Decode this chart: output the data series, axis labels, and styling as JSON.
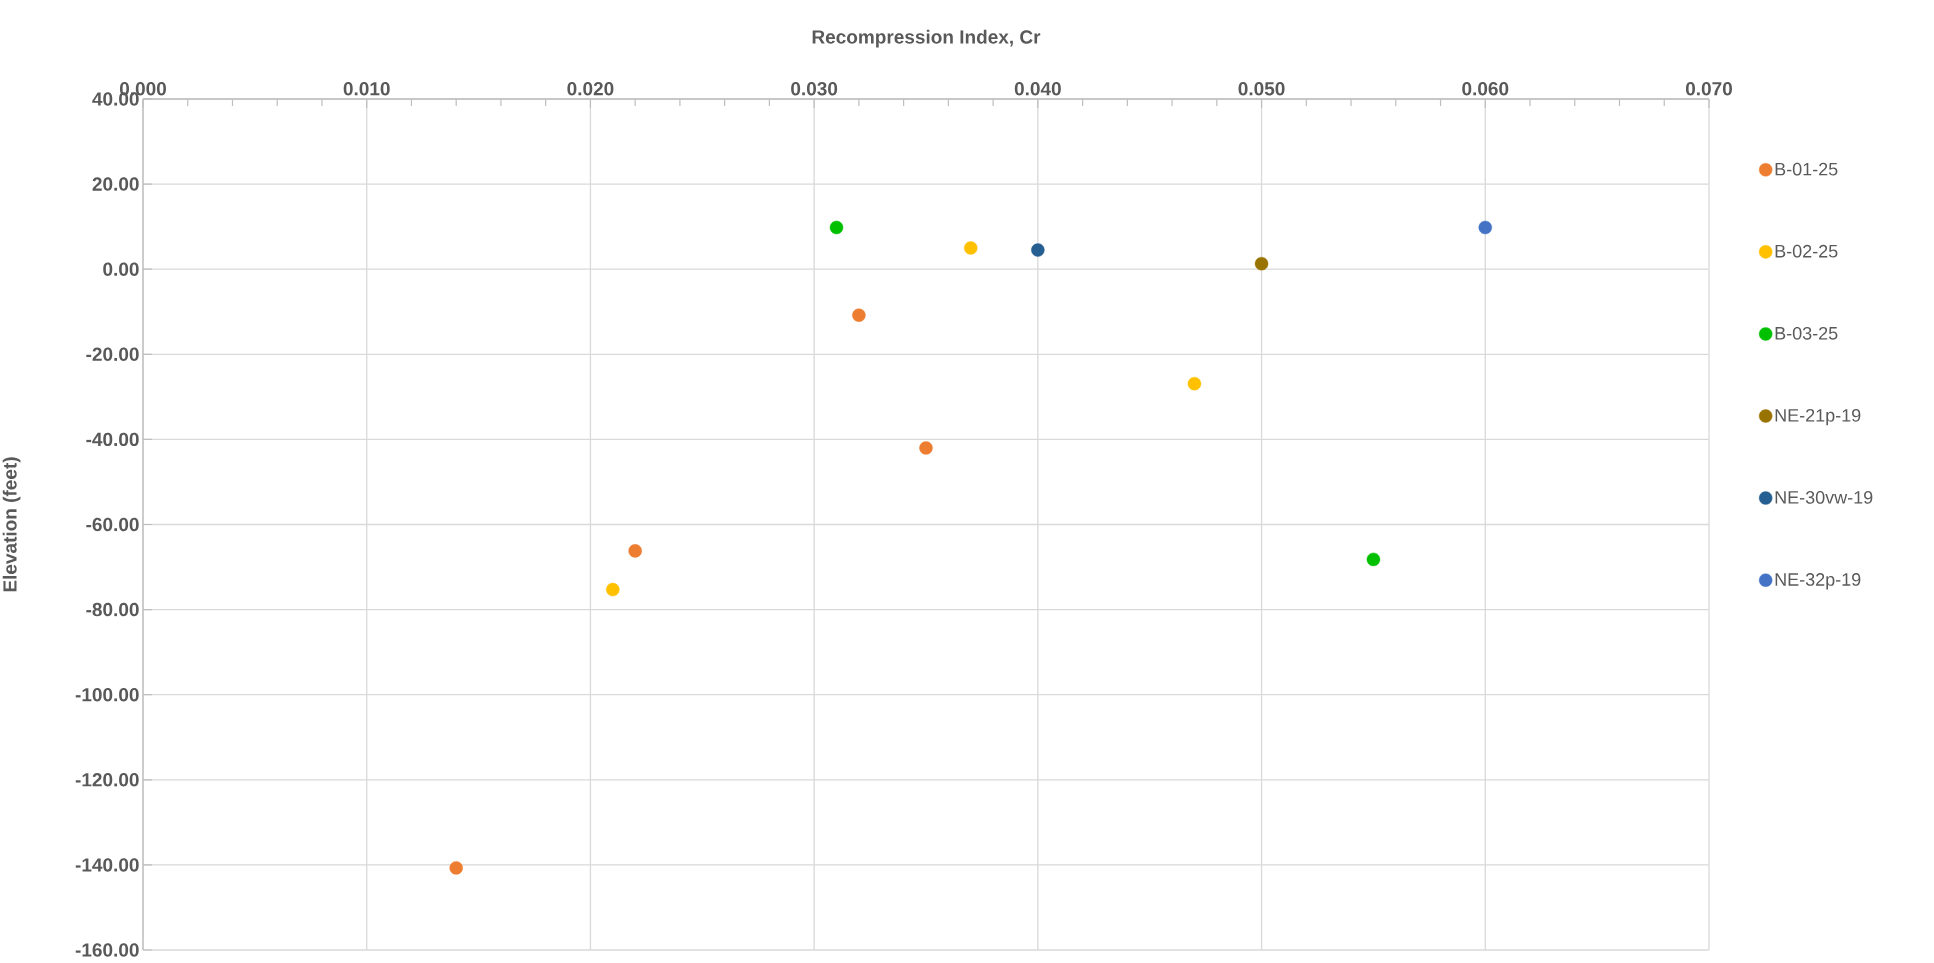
{
  "chart_data": {
    "type": "scatter",
    "xlabel": "Recompression Index, Cr",
    "ylabel": "Elevation (feet)",
    "xlim": [
      0,
      0.07
    ],
    "ylim": [
      -160,
      40
    ],
    "xticks": [
      {
        "value": 0,
        "label": "0.000"
      },
      {
        "value": 0.01,
        "label": "0.010"
      },
      {
        "value": 0.02,
        "label": "0.020"
      },
      {
        "value": 0.03,
        "label": "0.030"
      },
      {
        "value": 0.04,
        "label": "0.040"
      },
      {
        "value": 0.05,
        "label": "0.050"
      },
      {
        "value": 0.06,
        "label": "0.060"
      },
      {
        "value": 0.07,
        "label": "0.070"
      }
    ],
    "yticks": [
      {
        "value": 40,
        "label": "40.00"
      },
      {
        "value": 20,
        "label": "20.00"
      },
      {
        "value": 0,
        "label": "0.00"
      },
      {
        "value": -20,
        "label": "-20.00"
      },
      {
        "value": -40,
        "label": "-40.00"
      },
      {
        "value": -60,
        "label": "-60.00"
      },
      {
        "value": -80,
        "label": "-80.00"
      },
      {
        "value": -100,
        "label": "-100.00"
      },
      {
        "value": -120,
        "label": "-120.00"
      },
      {
        "value": -140,
        "label": "-140.00"
      },
      {
        "value": -160,
        "label": "-160.00"
      }
    ],
    "grid": true,
    "legend": "right",
    "marker": "circle",
    "series": [
      {
        "name": "B-01-25",
        "color": "#ed7d31",
        "x": [
          0.032,
          0.035,
          0.022,
          0.014
        ],
        "values": [
          -10.8,
          -42.0,
          -66.2,
          -140.7
        ]
      },
      {
        "name": "B-02-25",
        "color": "#ffc000",
        "x": [
          0.037,
          0.047,
          0.021
        ],
        "values": [
          5.0,
          -26.9,
          -75.3
        ]
      },
      {
        "name": "B-03-25",
        "color": "#00c000",
        "x": [
          0.031,
          0.055
        ],
        "values": [
          9.8,
          -68.2
        ]
      },
      {
        "name": "NE-21p-19",
        "color": "#997300",
        "x": [
          0.05
        ],
        "values": [
          1.3
        ]
      },
      {
        "name": "NE-30vw-19",
        "color": "#255e91",
        "x": [
          0.04
        ],
        "values": [
          4.5
        ]
      },
      {
        "name": "NE-32p-19",
        "color": "#4472c4",
        "x": [
          0.06
        ],
        "values": [
          9.8
        ]
      }
    ]
  }
}
